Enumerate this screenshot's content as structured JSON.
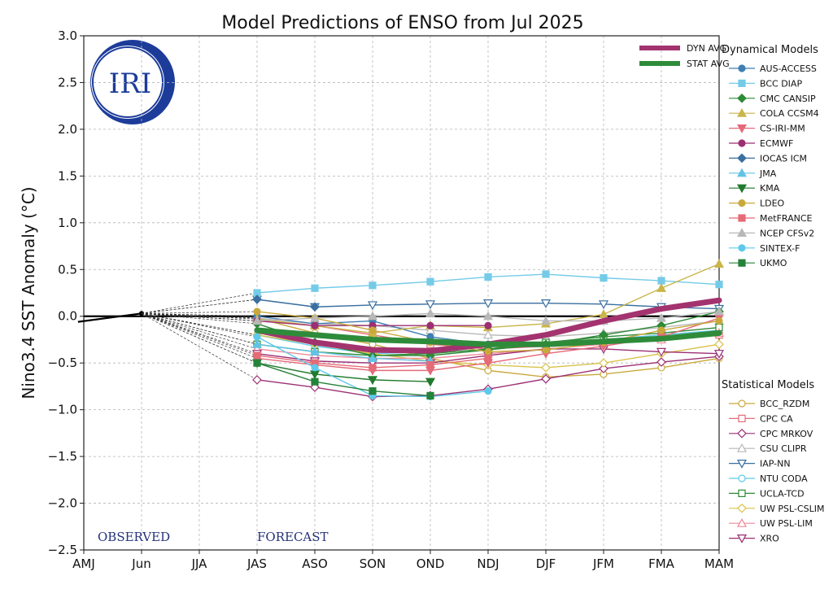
{
  "chart_data": {
    "type": "line",
    "title": "Model Predictions of ENSO from Jul 2025",
    "xlabel": "",
    "ylabel": "Nino3.4 SST Anomaly (°C)",
    "x": [
      "AMJ",
      "Jun",
      "JJA",
      "JAS",
      "ASO",
      "SON",
      "OND",
      "NDJ",
      "DJF",
      "JFM",
      "FMA",
      "MAM"
    ],
    "ylim": [
      -2.5,
      3.0
    ],
    "yticks": [
      "3.0",
      "2.5",
      "2.0",
      "1.5",
      "1.0",
      "0.5",
      "0.0",
      "−0.5",
      "−1.0",
      "−1.5",
      "−2.0",
      "−2.5"
    ],
    "grid": true,
    "logo_text": "IRI",
    "observed_label": "OBSERVED",
    "forecast_label": "FORECAST",
    "observed": {
      "x_start": -0.1,
      "y_start": -0.06,
      "x_end": 1,
      "y_end": 0.03
    },
    "avg_legend": [
      {
        "name": "DYN AVG",
        "color": "#a3336f"
      },
      {
        "name": "STAT AVG",
        "color": "#2e8b3a"
      }
    ],
    "dyn_legend_title": "Dynamical Models",
    "stat_legend_title": "Statistical Models",
    "averages": [
      {
        "name": "DYN AVG",
        "color": "#a3336f",
        "values": [
          -0.15,
          -0.28,
          -0.36,
          -0.37,
          -0.3,
          -0.2,
          -0.05,
          0.08,
          0.17
        ]
      },
      {
        "name": "STAT AVG",
        "color": "#2e8b3a",
        "values": [
          -0.15,
          -0.2,
          -0.25,
          -0.27,
          -0.3,
          -0.3,
          -0.27,
          -0.24,
          -0.18
        ]
      }
    ],
    "dynamical": [
      {
        "name": "AUS-ACCESS",
        "color": "#3f7fb3",
        "marker": "circle",
        "values": [
          0.0,
          -0.08,
          -0.05,
          -0.22,
          -0.3,
          null,
          null,
          null,
          null
        ]
      },
      {
        "name": "BCC DIAP",
        "color": "#74cbe8",
        "marker": "square",
        "values": [
          0.25,
          0.3,
          0.33,
          0.37,
          0.42,
          0.45,
          0.41,
          0.38,
          0.34
        ]
      },
      {
        "name": "CMC CANSIP",
        "color": "#2d8a36",
        "marker": "diamond",
        "values": [
          -0.08,
          -0.28,
          -0.42,
          -0.42,
          -0.36,
          -0.3,
          -0.2,
          -0.1,
          0.05
        ]
      },
      {
        "name": "COLA CCSM4",
        "color": "#c9b54a",
        "marker": "tri-up",
        "values": [
          -0.03,
          -0.1,
          -0.18,
          -0.1,
          -0.12,
          -0.08,
          0.02,
          0.3,
          0.56
        ]
      },
      {
        "name": "CS-IRI-MM",
        "color": "#e46a7a",
        "marker": "tri-down",
        "values": [
          -0.45,
          -0.52,
          -0.58,
          -0.58,
          -0.5,
          -0.4,
          -0.32,
          -0.22,
          -0.02
        ]
      },
      {
        "name": "ECMWF",
        "color": "#9c2f74",
        "marker": "circle",
        "values": [
          -0.05,
          -0.1,
          -0.1,
          -0.1,
          -0.1,
          null,
          null,
          null,
          null
        ]
      },
      {
        "name": "IOCAS ICM",
        "color": "#3a6fa0",
        "marker": "diamond",
        "values": [
          0.18,
          0.1,
          null,
          null,
          null,
          null,
          null,
          null,
          null
        ]
      },
      {
        "name": "JMA",
        "color": "#62c3e6",
        "marker": "tri-up",
        "values": [
          -0.3,
          -0.38,
          -0.45,
          -0.48,
          null,
          null,
          null,
          null,
          null
        ]
      },
      {
        "name": "KMA",
        "color": "#217a2e",
        "marker": "tri-down",
        "values": [
          -0.5,
          -0.62,
          -0.68,
          -0.7,
          null,
          null,
          null,
          null,
          null
        ]
      },
      {
        "name": "LDEO",
        "color": "#c9a93c",
        "marker": "circle",
        "values": [
          0.05,
          -0.02,
          -0.15,
          -0.28,
          -0.38,
          -0.36,
          -0.28,
          -0.15,
          -0.05
        ]
      },
      {
        "name": "MetFRANCE",
        "color": "#e56b76",
        "marker": "square",
        "values": [
          -0.42,
          -0.5,
          -0.55,
          -0.52,
          -0.45,
          null,
          null,
          null,
          null
        ]
      },
      {
        "name": "NCEP CFSv2",
        "color": "#b8b8b8",
        "marker": "tri-up",
        "values": [
          -0.05,
          -0.02,
          0.0,
          0.03,
          0.0,
          -0.05,
          -0.05,
          -0.02,
          0.05
        ]
      },
      {
        "name": "SINTEX-F",
        "color": "#5ec9ea",
        "marker": "circle",
        "values": [
          -0.22,
          -0.55,
          -0.85,
          -0.86,
          -0.8,
          null,
          null,
          null,
          null
        ]
      },
      {
        "name": "UKMO",
        "color": "#25823a",
        "marker": "square",
        "values": [
          -0.5,
          -0.7,
          -0.8,
          -0.85,
          null,
          null,
          null,
          null,
          null
        ]
      }
    ],
    "statistical": [
      {
        "name": "BCC_RZDM",
        "color": "#c9a93c",
        "marker": "circle",
        "values": [
          -0.02,
          -0.18,
          -0.3,
          -0.45,
          -0.58,
          -0.65,
          -0.62,
          -0.55,
          -0.45
        ]
      },
      {
        "name": "CPC CA",
        "color": "#e56b76",
        "marker": "square",
        "values": [
          -0.05,
          -0.1,
          -0.2,
          -0.3,
          -0.35,
          -0.32,
          -0.28,
          -0.25,
          -0.2
        ]
      },
      {
        "name": "CPC MRKOV",
        "color": "#9c2f74",
        "marker": "diamond",
        "values": [
          -0.68,
          -0.76,
          -0.86,
          -0.85,
          -0.78,
          -0.67,
          -0.56,
          -0.49,
          -0.43
        ]
      },
      {
        "name": "CSU CLIPR",
        "color": "#b8b8b8",
        "marker": "tri-up",
        "values": [
          -0.02,
          -0.08,
          -0.1,
          -0.15,
          -0.2,
          -0.22,
          -0.18,
          -0.12,
          -0.05
        ]
      },
      {
        "name": "IAP-NN",
        "color": "#3a6fa0",
        "marker": "tri-down",
        "values": [
          0.18,
          0.1,
          0.12,
          0.13,
          0.14,
          0.14,
          0.13,
          0.1,
          0.08
        ]
      },
      {
        "name": "NTU CODA",
        "color": "#5ec9ea",
        "marker": "circle",
        "values": [
          -0.2,
          -0.32,
          -0.4,
          -0.38,
          -0.32,
          -0.3,
          -0.25,
          -0.2,
          -0.15
        ]
      },
      {
        "name": "UCLA-TCD",
        "color": "#2d8a36",
        "marker": "square",
        "values": [
          -0.3,
          -0.38,
          -0.42,
          -0.4,
          -0.35,
          -0.28,
          -0.22,
          -0.18,
          -0.12
        ]
      },
      {
        "name": "UW PSL-CSLIM",
        "color": "#d9c24a",
        "marker": "diamond",
        "values": [
          -0.2,
          -0.3,
          -0.4,
          -0.48,
          -0.52,
          -0.55,
          -0.5,
          -0.4,
          -0.3
        ]
      },
      {
        "name": "UW PSL-LIM",
        "color": "#f08a98",
        "marker": "tri-up",
        "values": [
          -0.35,
          -0.42,
          -0.45,
          -0.45,
          -0.4,
          -0.35,
          -0.3,
          -0.25,
          -0.18
        ]
      },
      {
        "name": "XRO",
        "color": "#9c2f74",
        "marker": "tri-down",
        "values": [
          -0.4,
          -0.48,
          -0.5,
          -0.5,
          -0.42,
          -0.35,
          -0.35,
          -0.38,
          -0.4
        ]
      }
    ]
  }
}
